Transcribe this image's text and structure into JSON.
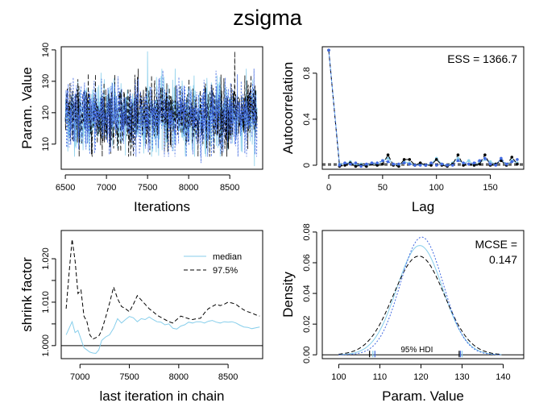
{
  "title": "zsigma",
  "chart_data": [
    {
      "type": "line",
      "panel": "trace",
      "xlabel": "Iterations",
      "ylabel": "Param. Value",
      "xlim": [
        6450,
        8900
      ],
      "ylim": [
        102,
        141
      ],
      "xticks": [
        6500,
        7000,
        7500,
        8000,
        8500
      ],
      "yticks": [
        110,
        120,
        130,
        140
      ],
      "series": [
        {
          "color": "#87CEEB",
          "style": "solid"
        },
        {
          "color": "#000000",
          "style": "dashed"
        },
        {
          "color": "#4169E1",
          "style": "dotted"
        }
      ],
      "x_range": [
        6500,
        8833
      ],
      "center": 119,
      "spread": 5.5,
      "extremes": [
        {
          "x": 7500,
          "y": 139.5
        },
        {
          "x": 8560,
          "y": 139.5
        },
        {
          "x": 8150,
          "y": 104
        },
        {
          "x": 8800,
          "y": 103
        }
      ]
    },
    {
      "type": "line",
      "panel": "autocorrelation",
      "xlabel": "Lag",
      "ylabel": "Autocorrelation",
      "annotation": "ESS = 1366.7",
      "xlim": [
        -6,
        181
      ],
      "ylim": [
        -0.035,
        1.03
      ],
      "xticks": [
        0,
        50,
        100,
        150
      ],
      "yticks": [
        0.0,
        0.4,
        0.8
      ],
      "series": [
        {
          "color": "#87CEEB",
          "style": "solid",
          "lags": [
            0,
            10,
            15,
            20,
            25,
            30,
            35,
            40,
            45,
            50,
            55,
            60,
            65,
            70,
            75,
            80,
            85,
            90,
            95,
            100,
            105,
            110,
            115,
            120,
            125,
            130,
            135,
            140,
            145,
            150,
            155,
            160,
            165,
            170,
            175
          ],
          "acf": [
            1.0,
            0.01,
            0.01,
            0.03,
            0.0,
            0.01,
            -0.01,
            0.02,
            0.0,
            0.04,
            0.06,
            0.01,
            0.0,
            0.03,
            0.02,
            0.0,
            0.01,
            0.0,
            0.01,
            0.06,
            0.01,
            0.0,
            0.02,
            0.06,
            0.01,
            0.04,
            0.0,
            0.02,
            0.05,
            0.03,
            0.01,
            0.05,
            0.0,
            0.04,
            0.02
          ]
        },
        {
          "color": "#000000",
          "style": "dashed",
          "lags": [
            0,
            10,
            15,
            20,
            25,
            30,
            35,
            40,
            45,
            50,
            55,
            60,
            65,
            70,
            75,
            80,
            85,
            90,
            95,
            100,
            105,
            110,
            115,
            120,
            125,
            130,
            135,
            140,
            145,
            150,
            155,
            160,
            165,
            170,
            175
          ],
          "acf": [
            1.0,
            -0.01,
            0.0,
            0.02,
            -0.01,
            0.0,
            -0.01,
            0.01,
            0.0,
            0.01,
            0.09,
            0.0,
            -0.01,
            0.05,
            0.05,
            0.0,
            0.02,
            0.0,
            0.0,
            0.05,
            0.0,
            -0.01,
            0.01,
            0.09,
            0.0,
            0.01,
            0.0,
            0.01,
            0.09,
            0.0,
            0.01,
            0.04,
            0.0,
            0.07,
            0.01
          ]
        },
        {
          "color": "#4169E1",
          "style": "dotted",
          "lags": [
            0,
            10,
            15,
            20,
            25,
            30,
            35,
            40,
            45,
            50,
            55,
            60,
            65,
            70,
            75,
            80,
            85,
            90,
            95,
            100,
            105,
            110,
            115,
            120,
            125,
            130,
            135,
            140,
            145,
            150,
            155,
            160,
            165,
            170,
            175
          ],
          "acf": [
            1.0,
            0.0,
            0.02,
            0.01,
            0.02,
            -0.01,
            0.01,
            0.02,
            0.02,
            0.04,
            0.03,
            0.01,
            0.01,
            0.02,
            0.01,
            0.0,
            0.0,
            0.0,
            0.02,
            0.0,
            0.01,
            0.0,
            0.0,
            0.04,
            0.02,
            0.01,
            0.02,
            0.04,
            0.06,
            0.01,
            0.0,
            0.06,
            0.01,
            0.03,
            0.05
          ]
        }
      ],
      "reference_lines": [
        0.0,
        0.0
      ]
    },
    {
      "type": "line",
      "panel": "shrink factor",
      "xlabel": "last iteration in chain",
      "ylabel": "shrink factor",
      "xlim": [
        6810,
        8850
      ],
      "ylim": [
        0.997,
        1.0265
      ],
      "xticks": [
        7000,
        7500,
        8000,
        8500
      ],
      "yticks": [
        1.0,
        1.005,
        1.01,
        1.015,
        1.02
      ],
      "ytick_labels": [
        "1.000",
        "",
        "1.010",
        "",
        "1.020"
      ],
      "legend": [
        {
          "label": "median",
          "color": "#87CEEB",
          "style": "solid"
        },
        {
          "label": "97.5%",
          "color": "#000000",
          "style": "dashed"
        }
      ],
      "legend_position": "top-right",
      "x": [
        6860,
        6890,
        6920,
        6950,
        6980,
        7010,
        7040,
        7070,
        7100,
        7130,
        7160,
        7190,
        7220,
        7260,
        7300,
        7340,
        7380,
        7420,
        7460,
        7500,
        7540,
        7580,
        7620,
        7660,
        7700,
        7740,
        7780,
        7820,
        7860,
        7900,
        7940,
        7980,
        8020,
        8060,
        8100,
        8140,
        8180,
        8220,
        8260,
        8300,
        8340,
        8380,
        8420,
        8460,
        8500,
        8540,
        8580,
        8620,
        8660,
        8700,
        8740,
        8780,
        8820
      ],
      "series": [
        {
          "name": "median",
          "values": [
            1.0025,
            1.004,
            1.0055,
            1.003,
            1.0035,
            1.0015,
            0.9995,
            0.999,
            0.9985,
            0.9983,
            0.9982,
            0.999,
            1.0012,
            1.002,
            1.0025,
            1.004,
            1.0062,
            1.0052,
            1.006,
            1.0067,
            1.0064,
            1.0055,
            1.0062,
            1.006,
            1.0066,
            1.006,
            1.0055,
            1.0054,
            1.0048,
            1.005,
            1.004,
            1.0038,
            1.0045,
            1.0048,
            1.0054,
            1.0052,
            1.0055,
            1.0055,
            1.0052,
            1.0056,
            1.0058,
            1.0054,
            1.0052,
            1.0055,
            1.0054,
            1.0055,
            1.0052,
            1.0047,
            1.0043,
            1.0042,
            1.0039,
            1.0041,
            1.0043
          ]
        },
        {
          "name": "97.5%",
          "values": [
            1.0085,
            1.0168,
            1.0245,
            1.0195,
            1.012,
            1.0128,
            1.0068,
            1.0055,
            1.0025,
            1.0015,
            1.0018,
            1.0022,
            1.0035,
            1.0065,
            1.0098,
            1.0135,
            1.0108,
            1.009,
            1.0085,
            1.0078,
            1.0095,
            1.0115,
            1.0105,
            1.0095,
            1.0085,
            1.0078,
            1.007,
            1.0065,
            1.006,
            1.0055,
            1.0052,
            1.006,
            1.0068,
            1.0065,
            1.0062,
            1.006,
            1.0062,
            1.0063,
            1.0075,
            1.0085,
            1.009,
            1.0095,
            1.0092,
            1.0095,
            1.01,
            1.0098,
            1.0095,
            1.0088,
            1.0082,
            1.0078,
            1.0075,
            1.0071,
            1.0068
          ]
        }
      ],
      "reference_line": 1.0
    },
    {
      "type": "line",
      "panel": "density",
      "xlabel": "Param. Value",
      "ylabel": "Density",
      "annotation_lines": [
        "MCSE =",
        "0.147"
      ],
      "hdi_label": "95% HDI",
      "xlim": [
        96,
        145
      ],
      "ylim": [
        -0.0025,
        0.081
      ],
      "xticks": [
        100,
        110,
        120,
        130,
        140
      ],
      "yticks": [
        0.0,
        0.02,
        0.04,
        0.06,
        0.08
      ],
      "ytick_labels": [
        "0.00",
        "0.02",
        "0.04",
        "0.06",
        "0.08"
      ],
      "series": [
        {
          "color": "#87CEEB",
          "style": "solid",
          "mean": 119.7,
          "sd": 5.6
        },
        {
          "color": "#000000",
          "style": "dashed",
          "mean": 119.5,
          "sd": 6.2
        },
        {
          "color": "#4169E1",
          "style": "dotted",
          "mean": 120.2,
          "sd": 5.2
        }
      ],
      "hdi_intervals": [
        {
          "color": "#87CEEB",
          "low": 108.3,
          "high": 130.0
        },
        {
          "color": "#000000",
          "low": 107.5,
          "high": 129.3
        },
        {
          "color": "#4169E1",
          "low": 108.8,
          "high": 129.6
        }
      ]
    }
  ]
}
